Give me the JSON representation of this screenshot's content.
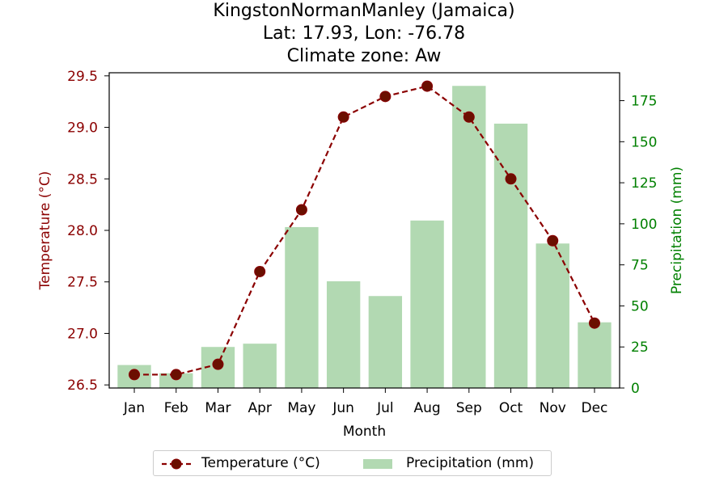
{
  "title": {
    "line1": "KingstonNormanManley (Jamaica)",
    "line2": "Lat: 17.93, Lon: -76.78",
    "line3": "Climate zone: Aw"
  },
  "colors": {
    "temperature": "#8b0000",
    "temperature_marker": "#6b0f00",
    "precipitation": "#b2d9b2",
    "precip_axis": "#008000"
  },
  "chart_data": {
    "type": "bar+line",
    "categories": [
      "Jan",
      "Feb",
      "Mar",
      "Apr",
      "May",
      "Jun",
      "Jul",
      "Aug",
      "Sep",
      "Oct",
      "Nov",
      "Dec"
    ],
    "xlabel": "Month",
    "ylabel_left": "Temperature (°C)",
    "ylabel_right": "Precipitation (mm)",
    "ylim_left": [
      26.47,
      29.53
    ],
    "ylim_right": [
      0,
      192
    ],
    "yticks_left": [
      "26.5",
      "27.0",
      "27.5",
      "28.0",
      "28.5",
      "29.0",
      "29.5"
    ],
    "yticks_right": [
      "0",
      "25",
      "50",
      "75",
      "100",
      "125",
      "150",
      "175"
    ],
    "series": [
      {
        "name": "Temperature (°C)",
        "type": "line",
        "axis": "left",
        "values": [
          26.6,
          26.6,
          26.7,
          27.6,
          28.2,
          29.1,
          29.3,
          29.4,
          29.1,
          28.5,
          27.9,
          27.1
        ]
      },
      {
        "name": "Precipitation (mm)",
        "type": "bar",
        "axis": "right",
        "values": [
          14,
          9,
          25,
          27,
          98,
          65,
          56,
          102,
          184,
          161,
          88,
          40
        ]
      }
    ],
    "grid": false,
    "legend_position": "bottom-center"
  }
}
